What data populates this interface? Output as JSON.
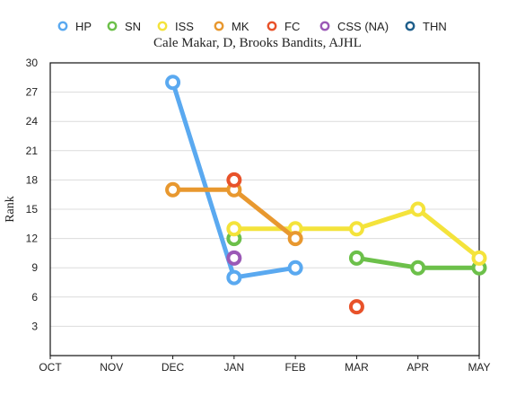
{
  "chart_data": {
    "type": "line",
    "title": "Cale Makar, D, Brooks Bandits, AJHL",
    "ylabel": "Rank",
    "xlabel": "",
    "categories": [
      "OCT",
      "NOV",
      "DEC",
      "JAN",
      "FEB",
      "MAR",
      "APR",
      "MAY"
    ],
    "ylim": [
      0,
      30
    ],
    "yticks": [
      3,
      6,
      9,
      12,
      15,
      18,
      21,
      24,
      27,
      30
    ],
    "grid": true,
    "legend_position": "top",
    "series": [
      {
        "name": "HP",
        "color": "#5aa9f0",
        "values": [
          null,
          null,
          28,
          8,
          9,
          null,
          null,
          null
        ]
      },
      {
        "name": "SN",
        "color": "#6cc04a",
        "values": [
          null,
          null,
          null,
          12,
          null,
          10,
          9,
          9
        ]
      },
      {
        "name": "ISS",
        "color": "#f4e33b",
        "values": [
          null,
          null,
          null,
          13,
          13,
          13,
          15,
          10
        ]
      },
      {
        "name": "MK",
        "color": "#e8982f",
        "values": [
          null,
          null,
          17,
          17,
          12,
          null,
          null,
          null
        ]
      },
      {
        "name": "FC",
        "color": "#e8522a",
        "values": [
          null,
          null,
          null,
          18,
          null,
          5,
          null,
          null
        ]
      },
      {
        "name": "CSS (NA)",
        "color": "#9b59b6",
        "values": [
          null,
          null,
          null,
          10,
          null,
          null,
          null,
          null
        ]
      },
      {
        "name": "THN",
        "color": "#1f5f8b",
        "values": [
          null,
          null,
          null,
          null,
          null,
          null,
          null,
          null
        ]
      }
    ]
  }
}
